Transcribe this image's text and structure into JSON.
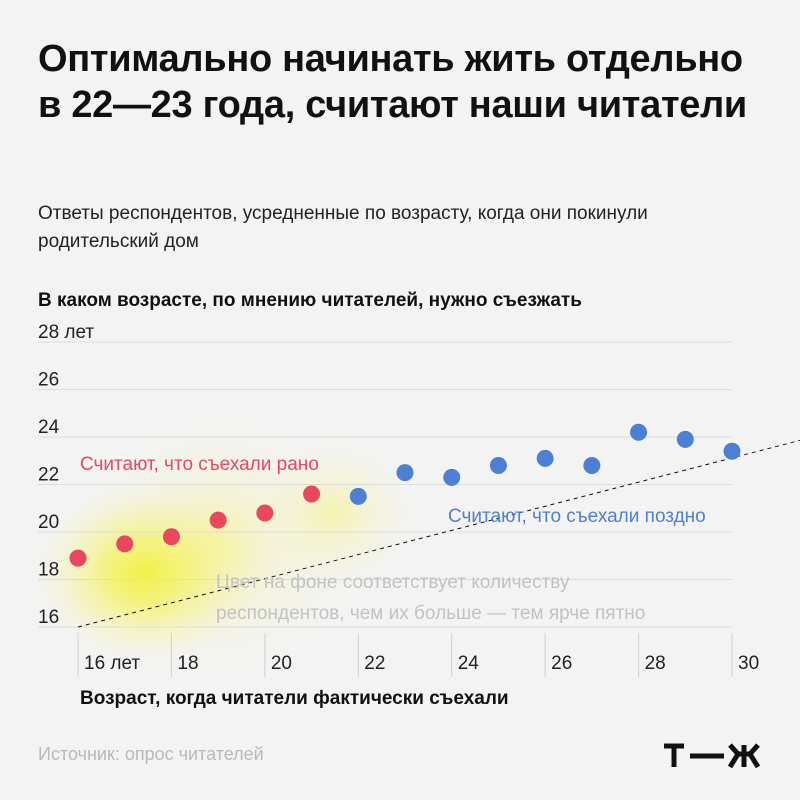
{
  "title": "Оптимально начинать жить отдельно в 22—23 года, считают наши читатели",
  "subtitle": "Ответы респондентов, усредненные по возрасту, когда они покинули родительский дом",
  "source": "Источник: опрос читателей",
  "logo_text": "т—ж",
  "colors": {
    "early": "#e8475f",
    "late": "#4d7fd4",
    "glow": "#f3f020",
    "background": "#f3f3f3",
    "note": "#c2c2c2"
  },
  "chart_data": {
    "type": "scatter",
    "title": "Оптимально начинать жить отдельно в 22—23 года, считают наши читатели",
    "subtitle": "Ответы респондентов, усредненные по возрасту, когда они покинули родительский дом",
    "xlabel": "Возраст, когда читатели фактически съехали",
    "ylabel": "В каком возрасте, по мнению читателей, нужно съезжать",
    "xlim": [
      16,
      30
    ],
    "ylim": [
      16,
      28
    ],
    "x_ticks": [
      {
        "value": 16,
        "label": "16 лет"
      },
      {
        "value": 18,
        "label": "18"
      },
      {
        "value": 20,
        "label": "20"
      },
      {
        "value": 22,
        "label": "22"
      },
      {
        "value": 24,
        "label": "24"
      },
      {
        "value": 26,
        "label": "26"
      },
      {
        "value": 28,
        "label": "28"
      },
      {
        "value": 30,
        "label": "30"
      }
    ],
    "y_ticks": [
      {
        "value": 16,
        "label": "16"
      },
      {
        "value": 18,
        "label": "18"
      },
      {
        "value": 20,
        "label": "20"
      },
      {
        "value": 22,
        "label": "22"
      },
      {
        "value": 24,
        "label": "24"
      },
      {
        "value": 26,
        "label": "26"
      },
      {
        "value": 28,
        "label": "28 лет"
      }
    ],
    "grid": true,
    "diagonal_reference": true,
    "series": [
      {
        "key": "early",
        "points": [
          {
            "x": 16,
            "y": 18.9
          },
          {
            "x": 17,
            "y": 19.5
          },
          {
            "x": 18,
            "y": 19.8
          },
          {
            "x": 19,
            "y": 20.5
          },
          {
            "x": 20,
            "y": 20.8
          },
          {
            "x": 21,
            "y": 21.6
          }
        ]
      },
      {
        "key": "late",
        "points": [
          {
            "x": 22,
            "y": 21.5
          },
          {
            "x": 23,
            "y": 22.5
          },
          {
            "x": 24,
            "y": 22.3
          },
          {
            "x": 25,
            "y": 22.8
          },
          {
            "x": 26,
            "y": 23.1
          },
          {
            "x": 27,
            "y": 22.8
          },
          {
            "x": 28,
            "y": 24.2
          },
          {
            "x": 29,
            "y": 23.9
          },
          {
            "x": 30,
            "y": 23.4
          }
        ]
      }
    ],
    "annotations": {
      "early": "Считают, что съехали рано",
      "late": "Считают, что съехали поздно",
      "note_line1": "Цвет на фоне соответствует количеству",
      "note_line2": "респондентов, чем их больше — тем ярче пятно"
    }
  }
}
